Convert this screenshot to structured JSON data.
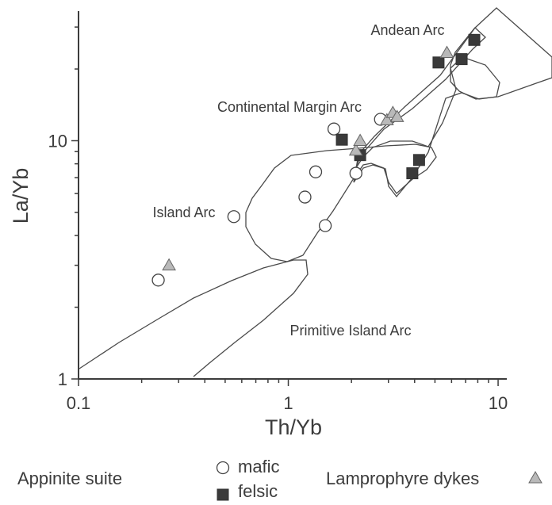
{
  "chart_data": {
    "type": "scatter",
    "x_scale": "log",
    "y_scale": "log",
    "xlabel": "Th/Yb",
    "ylabel": "La/Yb",
    "xlim": [
      0.1,
      11
    ],
    "ylim": [
      1,
      35
    ],
    "x_ticks": [
      {
        "value": 0.1,
        "label": "0.1"
      },
      {
        "value": 1,
        "label": "1"
      },
      {
        "value": 10,
        "label": "10"
      }
    ],
    "y_ticks": [
      {
        "value": 1,
        "label": "1"
      },
      {
        "value": 10,
        "label": "10"
      }
    ],
    "fields": [
      {
        "name": "Andean Arc"
      },
      {
        "name": "Continental Margin Arc"
      },
      {
        "name": "Island Arc"
      },
      {
        "name": "Primitive Island Arc"
      }
    ],
    "series": [
      {
        "marker": "open-circle",
        "points": [
          [
            0.24,
            2.6
          ],
          [
            0.55,
            4.8
          ],
          [
            1.2,
            5.8
          ],
          [
            1.35,
            7.4
          ],
          [
            1.5,
            4.4
          ],
          [
            1.65,
            11.2
          ],
          [
            2.1,
            7.3
          ],
          [
            2.75,
            12.3
          ]
        ]
      },
      {
        "marker": "filled-square",
        "points": [
          [
            1.8,
            10.1
          ],
          [
            2.2,
            8.7
          ],
          [
            3.9,
            7.3
          ],
          [
            4.2,
            8.3
          ],
          [
            5.2,
            21.3
          ],
          [
            6.7,
            22
          ],
          [
            7.7,
            26.5
          ]
        ]
      },
      {
        "marker": "grey-triangle",
        "points": [
          [
            0.27,
            3
          ],
          [
            2.1,
            9.1
          ],
          [
            2.2,
            10
          ],
          [
            2.95,
            12.2
          ],
          [
            3.15,
            13.1
          ],
          [
            3.3,
            12.6
          ],
          [
            5.7,
            23.4
          ]
        ]
      }
    ]
  },
  "legend": {
    "group_label": "Appinite suite",
    "mafic_label": "mafic",
    "felsic_label": "felsic",
    "lamprophyre_label": "Lamprophyre dykes"
  },
  "colors": {
    "axis": "#3c3c3c",
    "marker_outline": "#444444",
    "felsic_fill": "#3a3a3a",
    "triangle_fill": "#b9b9b9",
    "circle_fill": "#ffffff"
  }
}
